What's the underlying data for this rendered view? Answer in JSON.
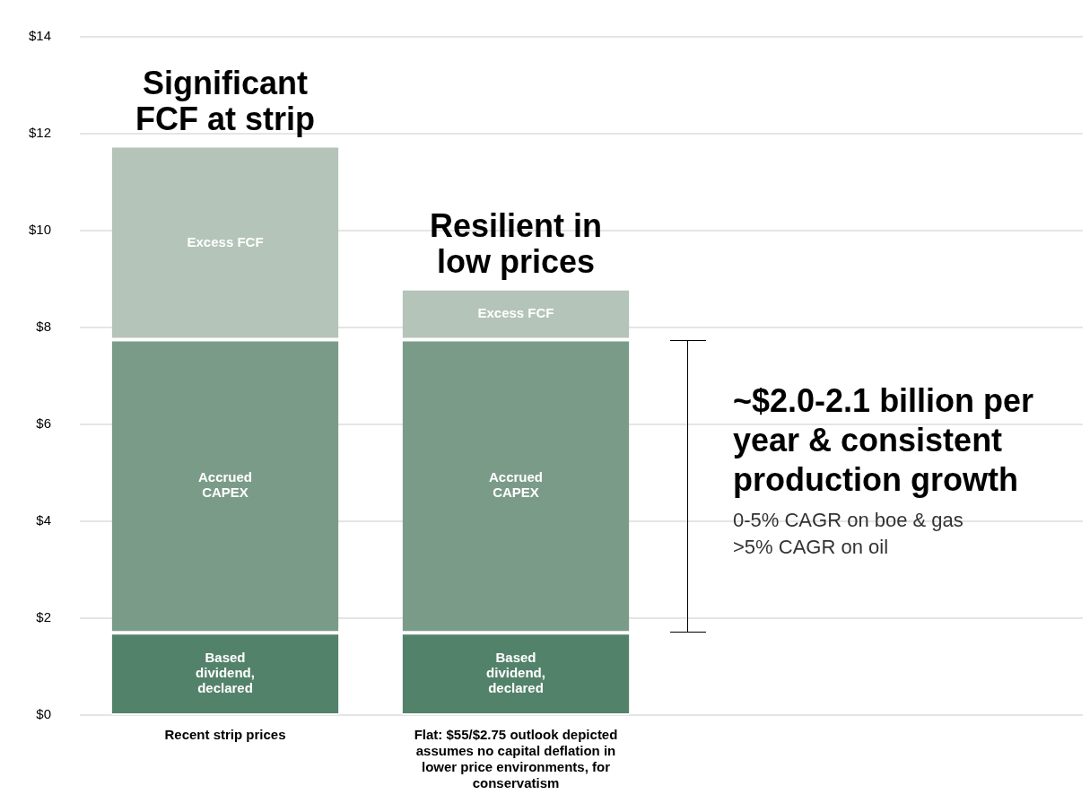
{
  "chart_data": {
    "type": "bar",
    "stacked": true,
    "categories": [
      "Recent strip prices",
      "Flat: $55/$2.75 outlook depicted assumes no capital deflation in lower price environments, for conservatism"
    ],
    "series": [
      {
        "name": "Based dividend, declared",
        "color": "#53826b",
        "values": [
          1.7,
          1.7
        ]
      },
      {
        "name": "Accrued CAPEX",
        "color": "#7b9b89",
        "values": [
          6.05,
          6.05
        ]
      },
      {
        "name": "Excess FCF",
        "color": "#b4c4b8",
        "values": [
          4.0,
          1.05
        ]
      }
    ],
    "ylim": [
      0,
      14
    ],
    "yticks": [
      {
        "value": 0,
        "label": "$0"
      },
      {
        "value": 2,
        "label": "$2"
      },
      {
        "value": 4,
        "label": "$4"
      },
      {
        "value": 6,
        "label": "$6"
      },
      {
        "value": 8,
        "label": "$8"
      },
      {
        "value": 10,
        "label": "$10"
      },
      {
        "value": 12,
        "label": "$12"
      },
      {
        "value": 14,
        "label": "$14"
      }
    ],
    "grid": "y",
    "legend": false,
    "annotations": [
      {
        "text": "Significant FCF at strip",
        "x": "Recent strip prices",
        "y": 11.75
      },
      {
        "text": "Resilient in low prices",
        "x": "Flat: $55/$2.75 outlook depicted assumes no capital deflation in lower price environments, for conservatism",
        "y": 8.8
      },
      "~$2.0-2.1 billion per year & consistent production growth",
      "0-5% CAGR on boe & gas",
      ">5% CAGR on oil"
    ]
  }
}
